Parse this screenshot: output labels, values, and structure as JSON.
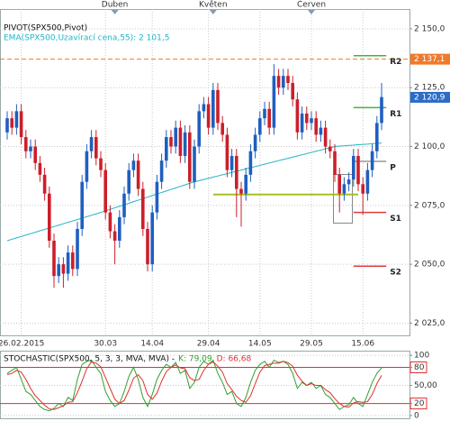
{
  "chart_data": [
    {
      "type": "candlestick",
      "title": "PIVOT(SPX500,Pivot)",
      "categories": [
        null,
        null,
        null,
        "26.02.2015",
        null,
        null,
        null,
        null,
        null,
        null,
        null,
        null,
        null,
        null,
        null,
        null,
        null,
        null,
        null,
        null,
        null,
        "30.03",
        null,
        null,
        null,
        null,
        null,
        null,
        null,
        null,
        null,
        "14.04",
        null,
        null,
        null,
        null,
        null,
        null,
        null,
        null,
        null,
        null,
        null,
        "29.04",
        null,
        null,
        null,
        null,
        null,
        null,
        null,
        null,
        null,
        null,
        "14.05",
        null,
        null,
        null,
        null,
        null,
        null,
        null,
        null,
        null,
        null,
        "29.05",
        null,
        null,
        null,
        null,
        null,
        null,
        null,
        null,
        null,
        null,
        "15.06",
        null,
        null,
        null,
        null
      ],
      "months": [
        null,
        null,
        null,
        null,
        null,
        null,
        null,
        null,
        null,
        null,
        null,
        null,
        null,
        null,
        null,
        null,
        null,
        null,
        null,
        null,
        null,
        null,
        null,
        "Duben",
        null,
        null,
        null,
        null,
        null,
        null,
        null,
        null,
        null,
        null,
        null,
        null,
        null,
        null,
        null,
        null,
        null,
        null,
        null,
        null,
        "Květen",
        null,
        null,
        null,
        null,
        null,
        null,
        null,
        null,
        null,
        null,
        null,
        null,
        null,
        null,
        null,
        null,
        null,
        null,
        null,
        null,
        "Červen",
        null,
        null,
        null,
        null,
        null,
        null,
        null,
        null,
        null,
        null,
        null,
        null,
        null,
        null,
        null
      ],
      "open": [
        2106,
        2112,
        2108,
        2115,
        2104,
        2098,
        2100,
        2093,
        2088,
        2080,
        2060,
        2045,
        2050,
        2046,
        2055,
        2048,
        2065,
        2085,
        2098,
        2104,
        2095,
        2090,
        2072,
        2064,
        2060,
        2070,
        2080,
        2090,
        2094,
        2082,
        2065,
        2050,
        2072,
        2085,
        2094,
        2104,
        2100,
        2108,
        2096,
        2106,
        2085,
        2100,
        2115,
        2118,
        2108,
        2124,
        2110,
        2105,
        2090,
        2096,
        2082,
        2080,
        2088,
        2098,
        2105,
        2112,
        2116,
        2108,
        2130,
        2125,
        2130,
        2127,
        2120,
        2106,
        2114,
        2110,
        2112,
        2105,
        2108,
        2100,
        2098,
        2088,
        2080,
        2084,
        2086,
        2096,
        2084,
        2080,
        2090,
        2098,
        2110
      ],
      "high": [
        2115,
        2115,
        2118,
        2118,
        2107,
        2103,
        2103,
        2096,
        2091,
        2083,
        2063,
        2053,
        2053,
        2058,
        2058,
        2068,
        2088,
        2101,
        2107,
        2107,
        2098,
        2093,
        2075,
        2067,
        2073,
        2083,
        2093,
        2097,
        2097,
        2085,
        2068,
        2075,
        2088,
        2097,
        2107,
        2107,
        2111,
        2111,
        2109,
        2109,
        2103,
        2118,
        2121,
        2121,
        2127,
        2127,
        2113,
        2108,
        2099,
        2099,
        2085,
        2091,
        2101,
        2108,
        2115,
        2119,
        2119,
        2135,
        2133,
        2133,
        2133,
        2130,
        2123,
        2117,
        2117,
        2115,
        2115,
        2111,
        2111,
        2103,
        2101,
        2091,
        2087,
        2089,
        2099,
        2099,
        2087,
        2093,
        2101,
        2113,
        2127
      ],
      "low": [
        2103,
        2105,
        2105,
        2101,
        2095,
        2095,
        2090,
        2085,
        2077,
        2057,
        2040,
        2042,
        2040,
        2043,
        2045,
        2045,
        2062,
        2082,
        2095,
        2092,
        2087,
        2069,
        2061,
        2050,
        2057,
        2067,
        2077,
        2087,
        2079,
        2062,
        2047,
        2047,
        2069,
        2082,
        2091,
        2097,
        2097,
        2093,
        2093,
        2082,
        2082,
        2097,
        2112,
        2105,
        2105,
        2107,
        2102,
        2087,
        2087,
        2070,
        2066,
        2077,
        2085,
        2095,
        2102,
        2109,
        2105,
        2105,
        2122,
        2122,
        2124,
        2117,
        2103,
        2103,
        2107,
        2107,
        2102,
        2102,
        2097,
        2095,
        2085,
        2072,
        2077,
        2081,
        2083,
        2081,
        2071,
        2077,
        2087,
        2095,
        2107
      ],
      "close": [
        2112,
        2108,
        2115,
        2104,
        2098,
        2100,
        2093,
        2088,
        2080,
        2060,
        2045,
        2050,
        2046,
        2055,
        2048,
        2065,
        2085,
        2098,
        2104,
        2095,
        2090,
        2072,
        2064,
        2060,
        2070,
        2080,
        2090,
        2094,
        2082,
        2065,
        2050,
        2072,
        2085,
        2094,
        2104,
        2100,
        2108,
        2096,
        2106,
        2085,
        2100,
        2115,
        2118,
        2108,
        2124,
        2110,
        2105,
        2090,
        2096,
        2082,
        2080,
        2088,
        2098,
        2105,
        2112,
        2116,
        2108,
        2130,
        2125,
        2130,
        2127,
        2120,
        2106,
        2114,
        2110,
        2112,
        2105,
        2108,
        2100,
        2098,
        2088,
        2080,
        2084,
        2086,
        2096,
        2084,
        2080,
        2090,
        2098,
        2110,
        2121
      ],
      "up_color": "#1f5fbf",
      "down_color": "#cc1f2a",
      "ema": {
        "name": "EMA(SPX500,Uzavírací cena,55): 2 101,5",
        "color": "#22b4c4",
        "values": [
          2060,
          2060.6,
          2061.2,
          2061.8,
          2062.4,
          2063,
          2063.6,
          2064.2,
          2064.8,
          2065.4,
          2066,
          2066.6,
          2067.2,
          2067.8,
          2068.4,
          2069,
          2069.6,
          2070.2,
          2070.8,
          2071.4,
          2072,
          2072.7,
          2073.3,
          2074,
          2074.6,
          2075.3,
          2075.9,
          2076.6,
          2077.2,
          2077.9,
          2078.5,
          2079.2,
          2079.8,
          2080.5,
          2081.1,
          2081.8,
          2082.4,
          2083.1,
          2083.7,
          2084.4,
          2085,
          2085.5,
          2086,
          2086.5,
          2087,
          2087.5,
          2088,
          2088.5,
          2089,
          2089.5,
          2090,
          2090.5,
          2091,
          2091.5,
          2092,
          2092.5,
          2093,
          2093.5,
          2094,
          2094.5,
          2095,
          2095.5,
          2096,
          2096.5,
          2097,
          2097.5,
          2098,
          2098.5,
          2099,
          2099.5,
          2100,
          2100.2,
          2100.3,
          2100.5,
          2100.6,
          2100.8,
          2100.9,
          2101,
          2101.2,
          2101.3,
          2101.5
        ]
      },
      "ylim": [
        2019.8,
        2158.4
      ],
      "yticks": [
        {
          "value": 2150,
          "label": "2 150,0"
        },
        {
          "value": 2125,
          "label": "2 125,0"
        },
        {
          "value": 2100,
          "label": "2 100,0"
        },
        {
          "value": 2075,
          "label": "2 075,0"
        },
        {
          "value": 2050,
          "label": "2 050,0"
        },
        {
          "value": 2025,
          "label": "2 025,0"
        }
      ],
      "grid": true,
      "pivots": [
        {
          "label": "R2",
          "value": 2138.6,
          "color": "#3cb83c"
        },
        {
          "label": "R1",
          "value": 2116.5,
          "color": "#3cb83c"
        },
        {
          "label": "P",
          "value": 2093.7,
          "color": "#999999"
        },
        {
          "label": "S1",
          "value": 2072,
          "color": "#e03a3a"
        },
        {
          "label": "S2",
          "value": 2049.2,
          "color": "#e03a3a"
        }
      ],
      "support_line": {
        "value": 2079.6,
        "color": "#a8c020"
      },
      "alert_line": {
        "value": 2137.1,
        "label": "2 137,1",
        "color": "#f07a2a"
      },
      "last_price": {
        "value": 2120.9,
        "label": "2 120,9",
        "color": "#2a6cc8"
      }
    },
    {
      "type": "stochastic",
      "title": "STOCHASTIC(SPX500, 5, 3, 3, MVA, MVA) -",
      "series": [
        {
          "name": "K: 79,09",
          "color": "#2ea02e",
          "values": [
            70,
            75,
            80,
            60,
            40,
            35,
            25,
            15,
            10,
            8,
            12,
            20,
            15,
            30,
            25,
            60,
            85,
            90,
            92,
            80,
            70,
            40,
            25,
            15,
            20,
            40,
            65,
            80,
            60,
            30,
            15,
            35,
            60,
            75,
            85,
            80,
            88,
            70,
            75,
            45,
            55,
            80,
            90,
            85,
            92,
            70,
            55,
            35,
            40,
            20,
            15,
            30,
            55,
            75,
            85,
            90,
            80,
            92,
            88,
            90,
            85,
            70,
            45,
            55,
            50,
            55,
            45,
            50,
            35,
            30,
            20,
            10,
            15,
            18,
            30,
            20,
            15,
            35,
            55,
            70,
            79.09
          ]
        },
        {
          "name": "D: 66,68",
          "color": "#e03030",
          "values": [
            68,
            70,
            75,
            72,
            60,
            45,
            33,
            25,
            17,
            11,
            10,
            13,
            16,
            22,
            23,
            38,
            57,
            78,
            89,
            87,
            81,
            63,
            45,
            27,
            20,
            25,
            42,
            62,
            68,
            58,
            35,
            27,
            37,
            57,
            73,
            80,
            84,
            79,
            78,
            63,
            58,
            60,
            75,
            85,
            89,
            82,
            72,
            53,
            43,
            32,
            25,
            22,
            33,
            53,
            72,
            83,
            85,
            87,
            87,
            90,
            88,
            82,
            67,
            57,
            50,
            53,
            50,
            50,
            43,
            38,
            28,
            20,
            15,
            14,
            21,
            23,
            22,
            23,
            35,
            53,
            66.68
          ]
        }
      ],
      "ylim": [
        -4.6,
        107.7
      ],
      "yticks": [
        100,
        80,
        {
          "value": 50,
          "label": "50,00"
        },
        20,
        0
      ],
      "levels": [
        80,
        20
      ],
      "level_color": "#e03030"
    }
  ]
}
